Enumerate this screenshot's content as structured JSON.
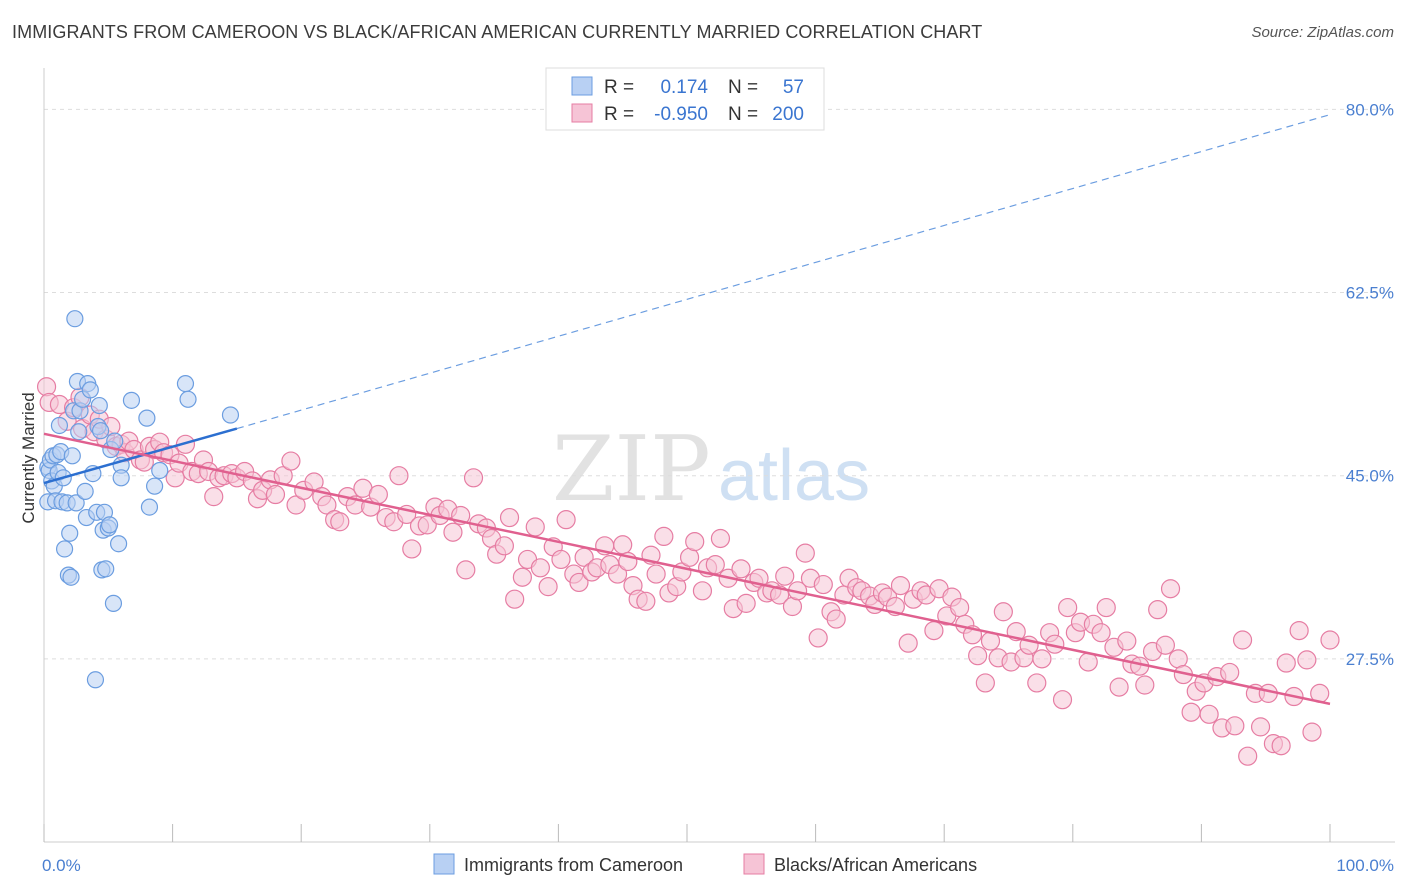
{
  "title": "IMMIGRANTS FROM CAMEROON VS BLACK/AFRICAN AMERICAN CURRENTLY MARRIED CORRELATION CHART",
  "source": "Source: ZipAtlas.com",
  "watermark": {
    "zip": "ZIP",
    "atlas": "atlas"
  },
  "colors": {
    "blue": "#6b9de0",
    "blue_fill": "#b8d0f3",
    "blue_line": "#2c6fd0",
    "pink": "#e67da3",
    "pink_fill": "#f6c4d6",
    "pink_line": "#e0608f",
    "tick_text": "#4a7fd0",
    "grid": "#dddddd"
  },
  "legend": {
    "r_label": "R =",
    "n_label": "N =",
    "rows": [
      {
        "r": "0.174",
        "n": "57",
        "color": "blue"
      },
      {
        "r": "-0.950",
        "n": "200",
        "color": "pink"
      }
    ]
  },
  "bottom_legend": [
    {
      "label": "Immigrants from Cameroon",
      "color": "blue"
    },
    {
      "label": "Blacks/African Americans",
      "color": "pink"
    }
  ],
  "chart_data": {
    "type": "scatter",
    "title": "IMMIGRANTS FROM CAMEROON VS BLACK/AFRICAN AMERICAN CURRENTLY MARRIED CORRELATION CHART",
    "xlabel": "",
    "ylabel": "Currently Married",
    "xlim": [
      0,
      100
    ],
    "ylim": [
      10,
      83
    ],
    "x_tick_labels": [
      "0.0%",
      "100.0%"
    ],
    "y_ticks": [
      27.5,
      45.0,
      62.5,
      80.0
    ],
    "y_tick_labels": [
      "27.5%",
      "45.0%",
      "62.5%",
      "80.0%"
    ],
    "grid": true,
    "series": [
      {
        "name": "Immigrants from Cameroon",
        "color": "blue",
        "trend": {
          "x": [
            0,
            15
          ],
          "y": [
            44.3,
            49.5
          ],
          "extended_to": [
            100,
            79.5
          ]
        },
        "points": [
          [
            0.3,
            42.5
          ],
          [
            0.3,
            45.8
          ],
          [
            0.4,
            45.5
          ],
          [
            0.5,
            46.5
          ],
          [
            0.6,
            44.5
          ],
          [
            0.7,
            46.9
          ],
          [
            0.8,
            44.0
          ],
          [
            0.9,
            42.6
          ],
          [
            1.0,
            47.0
          ],
          [
            1.1,
            45.3
          ],
          [
            1.2,
            49.8
          ],
          [
            1.3,
            47.3
          ],
          [
            1.4,
            42.5
          ],
          [
            1.5,
            44.8
          ],
          [
            1.6,
            38.0
          ],
          [
            1.8,
            42.4
          ],
          [
            1.9,
            35.5
          ],
          [
            2.0,
            39.5
          ],
          [
            2.1,
            35.3
          ],
          [
            2.2,
            46.9
          ],
          [
            2.3,
            51.2
          ],
          [
            2.4,
            60.0
          ],
          [
            2.5,
            42.4
          ],
          [
            2.6,
            54.0
          ],
          [
            2.7,
            49.2
          ],
          [
            2.8,
            51.2
          ],
          [
            3.0,
            52.3
          ],
          [
            3.2,
            43.5
          ],
          [
            3.3,
            41.0
          ],
          [
            3.4,
            53.8
          ],
          [
            3.6,
            53.2
          ],
          [
            3.8,
            45.2
          ],
          [
            4.0,
            25.5
          ],
          [
            4.1,
            41.5
          ],
          [
            4.2,
            49.7
          ],
          [
            4.3,
            51.7
          ],
          [
            4.4,
            49.3
          ],
          [
            4.5,
            36.0
          ],
          [
            4.6,
            39.8
          ],
          [
            4.7,
            41.5
          ],
          [
            4.8,
            36.1
          ],
          [
            5.0,
            40.0
          ],
          [
            5.1,
            40.3
          ],
          [
            5.2,
            47.5
          ],
          [
            5.4,
            32.8
          ],
          [
            5.5,
            48.3
          ],
          [
            6.0,
            46.0
          ],
          [
            5.8,
            38.5
          ],
          [
            6.0,
            44.8
          ],
          [
            6.8,
            52.2
          ],
          [
            8.0,
            50.5
          ],
          [
            8.2,
            42.0
          ],
          [
            8.6,
            44.0
          ],
          [
            9.0,
            45.5
          ],
          [
            11.0,
            53.8
          ],
          [
            11.2,
            52.3
          ],
          [
            14.5,
            50.8
          ]
        ]
      },
      {
        "name": "Blacks/African Americans",
        "color": "pink",
        "trend": {
          "x": [
            0,
            100
          ],
          "y": [
            49.0,
            23.2
          ]
        },
        "points": [
          [
            0.2,
            53.5
          ],
          [
            0.4,
            52.0
          ],
          [
            1.2,
            51.8
          ],
          [
            1.8,
            50.2
          ],
          [
            2.3,
            51.5
          ],
          [
            2.8,
            52.5
          ],
          [
            3.0,
            49.5
          ],
          [
            3.6,
            50.8
          ],
          [
            3.9,
            49.2
          ],
          [
            4.3,
            50.4
          ],
          [
            4.8,
            48.5
          ],
          [
            5.2,
            49.7
          ],
          [
            5.6,
            47.8
          ],
          [
            6.0,
            48.0
          ],
          [
            6.3,
            47.2
          ],
          [
            6.6,
            48.3
          ],
          [
            7.0,
            47.5
          ],
          [
            7.5,
            46.5
          ],
          [
            7.8,
            46.3
          ],
          [
            8.2,
            47.8
          ],
          [
            8.6,
            47.5
          ],
          [
            9.0,
            48.2
          ],
          [
            9.3,
            47.2
          ],
          [
            9.8,
            47.0
          ],
          [
            10.2,
            44.8
          ],
          [
            10.5,
            46.2
          ],
          [
            11.0,
            48.0
          ],
          [
            11.5,
            45.4
          ],
          [
            12.0,
            45.2
          ],
          [
            12.4,
            46.5
          ],
          [
            12.8,
            45.4
          ],
          [
            13.2,
            43.0
          ],
          [
            13.6,
            44.8
          ],
          [
            14.0,
            45.0
          ],
          [
            14.6,
            45.2
          ],
          [
            15.0,
            44.8
          ],
          [
            15.6,
            45.4
          ],
          [
            16.2,
            44.5
          ],
          [
            16.6,
            42.8
          ],
          [
            17.0,
            43.6
          ],
          [
            17.6,
            44.6
          ],
          [
            18.0,
            43.2
          ],
          [
            18.6,
            45.0
          ],
          [
            19.2,
            46.4
          ],
          [
            19.6,
            42.2
          ],
          [
            20.2,
            43.6
          ],
          [
            21.0,
            44.4
          ],
          [
            21.6,
            43.0
          ],
          [
            22.0,
            42.2
          ],
          [
            22.6,
            40.8
          ],
          [
            23.0,
            40.6
          ],
          [
            23.6,
            43.0
          ],
          [
            24.2,
            42.2
          ],
          [
            24.8,
            43.8
          ],
          [
            25.4,
            42.0
          ],
          [
            26.0,
            43.2
          ],
          [
            26.6,
            41.0
          ],
          [
            27.2,
            40.6
          ],
          [
            27.6,
            45.0
          ],
          [
            28.2,
            41.3
          ],
          [
            28.6,
            38.0
          ],
          [
            29.2,
            40.2
          ],
          [
            29.8,
            40.3
          ],
          [
            30.4,
            42.0
          ],
          [
            30.8,
            41.2
          ],
          [
            31.4,
            41.8
          ],
          [
            31.8,
            39.6
          ],
          [
            32.4,
            41.2
          ],
          [
            32.8,
            36.0
          ],
          [
            33.4,
            44.8
          ],
          [
            33.8,
            40.4
          ],
          [
            34.4,
            40.0
          ],
          [
            34.8,
            39.0
          ],
          [
            35.2,
            37.5
          ],
          [
            35.8,
            38.3
          ],
          [
            36.2,
            41.0
          ],
          [
            36.6,
            33.2
          ],
          [
            37.2,
            35.3
          ],
          [
            37.6,
            37.0
          ],
          [
            38.2,
            40.1
          ],
          [
            38.6,
            36.2
          ],
          [
            39.2,
            34.4
          ],
          [
            39.6,
            38.2
          ],
          [
            40.2,
            37.0
          ],
          [
            40.6,
            40.8
          ],
          [
            41.2,
            35.6
          ],
          [
            41.6,
            34.8
          ],
          [
            42.0,
            37.2
          ],
          [
            42.6,
            35.8
          ],
          [
            43.0,
            36.2
          ],
          [
            43.6,
            38.3
          ],
          [
            44.0,
            36.5
          ],
          [
            44.6,
            35.6
          ],
          [
            45.0,
            38.4
          ],
          [
            45.4,
            36.8
          ],
          [
            45.8,
            34.5
          ],
          [
            46.2,
            33.2
          ],
          [
            46.8,
            33.0
          ],
          [
            47.2,
            37.4
          ],
          [
            47.6,
            35.6
          ],
          [
            48.2,
            39.2
          ],
          [
            48.6,
            33.8
          ],
          [
            49.2,
            34.4
          ],
          [
            49.6,
            35.8
          ],
          [
            50.2,
            37.2
          ],
          [
            50.6,
            38.7
          ],
          [
            51.2,
            34.0
          ],
          [
            51.6,
            36.2
          ],
          [
            52.2,
            36.5
          ],
          [
            52.6,
            39.0
          ],
          [
            53.2,
            35.2
          ],
          [
            53.6,
            32.3
          ],
          [
            54.2,
            36.1
          ],
          [
            54.6,
            32.8
          ],
          [
            55.2,
            34.8
          ],
          [
            55.6,
            35.2
          ],
          [
            56.2,
            33.8
          ],
          [
            56.6,
            34.0
          ],
          [
            57.2,
            33.6
          ],
          [
            57.6,
            35.4
          ],
          [
            58.2,
            32.5
          ],
          [
            58.6,
            34.0
          ],
          [
            59.2,
            37.6
          ],
          [
            59.6,
            35.2
          ],
          [
            60.2,
            29.5
          ],
          [
            60.6,
            34.6
          ],
          [
            61.2,
            32.0
          ],
          [
            61.6,
            31.3
          ],
          [
            62.2,
            33.6
          ],
          [
            62.6,
            35.2
          ],
          [
            63.2,
            34.3
          ],
          [
            63.6,
            34.0
          ],
          [
            64.2,
            33.5
          ],
          [
            64.6,
            32.7
          ],
          [
            65.2,
            33.8
          ],
          [
            65.6,
            33.4
          ],
          [
            66.2,
            32.5
          ],
          [
            66.6,
            34.5
          ],
          [
            67.2,
            29.0
          ],
          [
            67.6,
            33.2
          ],
          [
            68.2,
            34.0
          ],
          [
            68.6,
            33.6
          ],
          [
            69.2,
            30.2
          ],
          [
            69.6,
            34.2
          ],
          [
            70.2,
            31.6
          ],
          [
            70.6,
            33.4
          ],
          [
            71.2,
            32.4
          ],
          [
            71.6,
            30.8
          ],
          [
            72.2,
            29.8
          ],
          [
            72.6,
            27.8
          ],
          [
            73.2,
            25.2
          ],
          [
            73.6,
            29.2
          ],
          [
            74.2,
            27.6
          ],
          [
            74.6,
            32.0
          ],
          [
            75.2,
            27.2
          ],
          [
            75.6,
            30.1
          ],
          [
            76.2,
            27.6
          ],
          [
            76.6,
            28.8
          ],
          [
            77.2,
            25.2
          ],
          [
            77.6,
            27.5
          ],
          [
            78.2,
            30.0
          ],
          [
            78.6,
            28.9
          ],
          [
            79.2,
            23.6
          ],
          [
            79.6,
            32.4
          ],
          [
            80.2,
            30.0
          ],
          [
            80.6,
            31.0
          ],
          [
            81.2,
            27.2
          ],
          [
            81.6,
            30.8
          ],
          [
            82.2,
            30.0
          ],
          [
            82.6,
            32.4
          ],
          [
            83.2,
            28.6
          ],
          [
            83.6,
            24.8
          ],
          [
            84.2,
            29.2
          ],
          [
            84.6,
            27.0
          ],
          [
            85.2,
            26.8
          ],
          [
            85.6,
            25.0
          ],
          [
            86.2,
            28.2
          ],
          [
            86.6,
            32.2
          ],
          [
            87.2,
            28.8
          ],
          [
            87.6,
            34.2
          ],
          [
            88.2,
            27.5
          ],
          [
            88.6,
            26.0
          ],
          [
            89.2,
            22.4
          ],
          [
            89.6,
            24.4
          ],
          [
            90.2,
            25.2
          ],
          [
            90.6,
            22.2
          ],
          [
            91.2,
            25.8
          ],
          [
            91.6,
            20.9
          ],
          [
            92.2,
            26.2
          ],
          [
            92.6,
            21.1
          ],
          [
            93.2,
            29.3
          ],
          [
            93.6,
            18.2
          ],
          [
            94.2,
            24.2
          ],
          [
            94.6,
            21.0
          ],
          [
            95.2,
            24.2
          ],
          [
            95.6,
            19.4
          ],
          [
            96.2,
            19.2
          ],
          [
            96.6,
            27.1
          ],
          [
            97.2,
            23.9
          ],
          [
            97.6,
            30.2
          ],
          [
            98.2,
            27.4
          ],
          [
            98.6,
            20.5
          ],
          [
            99.2,
            24.2
          ],
          [
            100.0,
            29.3
          ]
        ]
      }
    ]
  }
}
